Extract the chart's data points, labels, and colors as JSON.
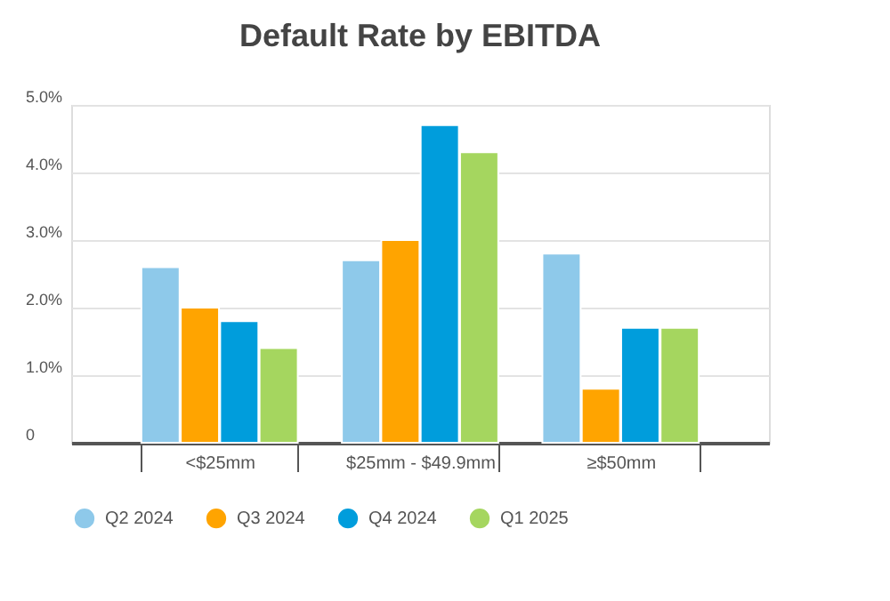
{
  "chart_data": {
    "type": "bar",
    "title": "Default Rate by EBITDA",
    "categories": [
      "<$25mm",
      "$25mm - $49.9mm",
      "≥$50mm"
    ],
    "series": [
      {
        "name": "Q2 2024",
        "color": "#8ec9ea",
        "values": [
          2.6,
          2.7,
          2.8
        ]
      },
      {
        "name": "Q3 2024",
        "color": "#ffa400",
        "values": [
          2.0,
          3.0,
          0.8
        ]
      },
      {
        "name": "Q4 2024",
        "color": "#009ddc",
        "values": [
          1.8,
          4.7,
          1.7
        ]
      },
      {
        "name": "Q1 2025",
        "color": "#a5d65f",
        "values": [
          1.4,
          4.3,
          1.7
        ]
      }
    ],
    "ylim": [
      0,
      5
    ],
    "yticks": [
      {
        "value": 0,
        "label": "0"
      },
      {
        "value": 1,
        "label": "1.0%"
      },
      {
        "value": 2,
        "label": "2.0%"
      },
      {
        "value": 3,
        "label": "3.0%"
      },
      {
        "value": 4,
        "label": "4.0%"
      },
      {
        "value": 5,
        "label": "5.0%"
      }
    ],
    "grid": "y",
    "legend": "bottom"
  }
}
